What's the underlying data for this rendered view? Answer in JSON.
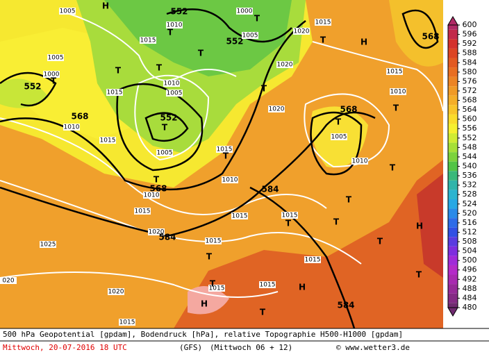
{
  "map": {
    "labels": [
      "H",
      "552",
      "1000",
      "T",
      "1005",
      "1010",
      "1015",
      "552",
      "1005",
      "1020",
      "1015",
      "T",
      "H",
      "568",
      "1005",
      "1000",
      "T",
      "552",
      "T",
      "T",
      "T",
      "T",
      "1020",
      "1015",
      "1010",
      "1005",
      "1015",
      "T",
      "1010",
      "1020",
      "568",
      "1010",
      "552",
      "T",
      "568",
      "T",
      "T",
      "1005",
      "1015",
      "1005",
      "1015",
      "T",
      "1010",
      "T",
      "568",
      "T",
      "1010",
      "584",
      "1010",
      "T",
      "1015",
      "1015",
      "1015",
      "T",
      "T",
      "1020",
      "584",
      "H",
      "1015",
      "T",
      "1025",
      "T",
      "1015",
      "020",
      "1015",
      "H",
      "T",
      "1020",
      "1015",
      "T",
      "H",
      "584",
      "T",
      "1015"
    ]
  },
  "colorbar": {
    "ticks": [
      600,
      596,
      592,
      588,
      584,
      580,
      576,
      572,
      568,
      564,
      560,
      556,
      552,
      548,
      544,
      540,
      536,
      532,
      528,
      524,
      520,
      516,
      512,
      508,
      504,
      500,
      496,
      492,
      488,
      484,
      480
    ],
    "colors": [
      "#b02a66",
      "#c22a4a",
      "#d3312c",
      "#dc4524",
      "#e25a22",
      "#e86e22",
      "#ec8424",
      "#f09a26",
      "#f4ae28",
      "#f8c42a",
      "#fadc2c",
      "#f6f030",
      "#d0ec34",
      "#a6e038",
      "#7cd23c",
      "#52c446",
      "#3ab87a",
      "#30b4aa",
      "#2cb4d0",
      "#28a8e4",
      "#2a8ae8",
      "#2e6ce8",
      "#3250e4",
      "#5a3ce0",
      "#7e2ede",
      "#a02ad8",
      "#b42ac8",
      "#a82ab0",
      "#962a98",
      "#842a84",
      "#702a70"
    ]
  },
  "footer": {
    "line1": "500 hPa Geopotential [gpdam], Bodendruck [hPa], relative Topographie H500-H1000 [gpdam]",
    "date": "Mittwoch, 20-07-2016  18 UTC",
    "model": "(GFS)",
    "run": "(Mittwoch 06 + 12)",
    "credit": "© www.wetter3.de"
  }
}
